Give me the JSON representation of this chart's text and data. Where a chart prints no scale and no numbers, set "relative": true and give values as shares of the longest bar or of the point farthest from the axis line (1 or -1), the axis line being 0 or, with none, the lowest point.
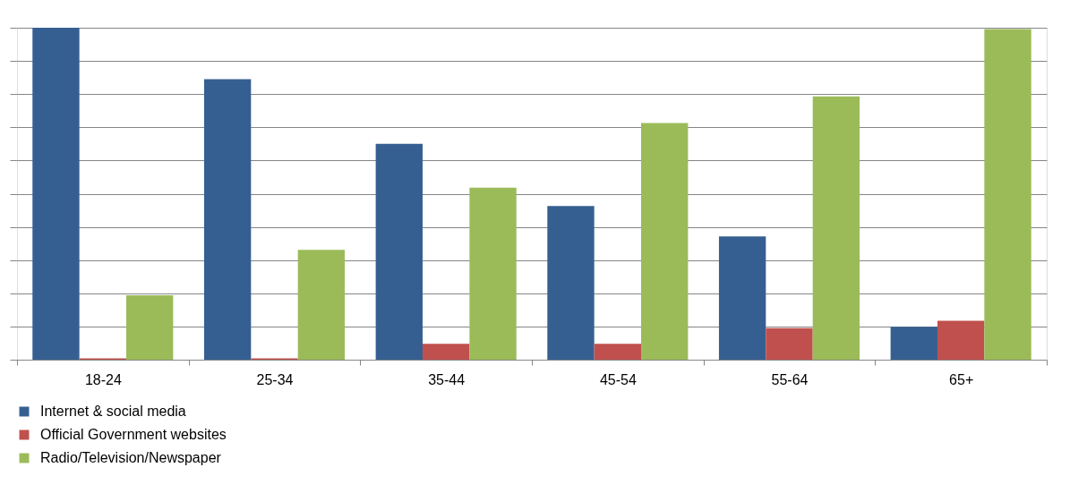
{
  "chart_data": {
    "type": "bar",
    "relative": true,
    "categories": [
      "18-24",
      "25-34",
      "35-44",
      "45-54",
      "55-64",
      "65+"
    ],
    "series": [
      {
        "name": "Internet & social media",
        "color": "#365f91",
        "values": [
          1,
          0.845,
          0.65,
          0.463,
          0.371,
          0.099
        ]
      },
      {
        "name": "Official Government websites",
        "color": "#c0504d",
        "values": [
          0.004,
          0.004,
          0.048,
          0.048,
          0.095,
          0.117
        ]
      },
      {
        "name": "Radio/Television/Newspaper",
        "color": "#9bbb59",
        "values": [
          0.194,
          0.331,
          0.518,
          0.713,
          0.793,
          0.996
        ]
      }
    ],
    "grid": "y",
    "legend": "bottom"
  }
}
